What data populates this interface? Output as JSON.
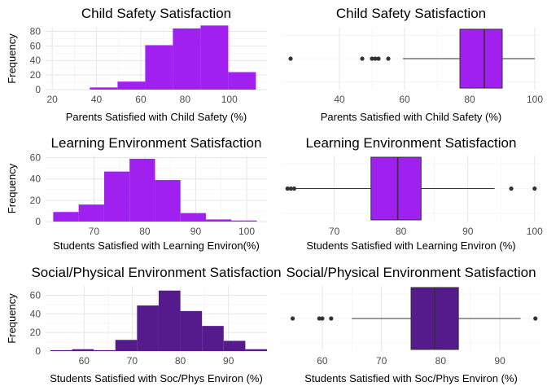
{
  "colors": {
    "purple_light": "#a020f0",
    "purple_dark": "#551a8b",
    "box_line": "#333333",
    "point": "#333333"
  },
  "chart_data": [
    {
      "id": "hist-child",
      "type": "bar",
      "title": "Child Safety Satisfaction",
      "xlabel": "Parents Satisfied with Child Safety (%)",
      "ylabel": "Frequency",
      "color": "#a020f0",
      "xlim": [
        17,
        117
      ],
      "ylim": [
        0,
        85
      ],
      "xticks": [
        20,
        40,
        60,
        80,
        100
      ],
      "yticks": [
        0,
        20,
        40,
        60,
        80
      ],
      "bins": [
        {
          "x0": 37,
          "x1": 49.5,
          "value": 3
        },
        {
          "x0": 49.5,
          "x1": 62,
          "value": 11
        },
        {
          "x0": 62,
          "x1": 74.5,
          "value": 61
        },
        {
          "x0": 74.5,
          "x1": 87,
          "value": 84
        },
        {
          "x0": 87,
          "x1": 99.5,
          "value": 88
        },
        {
          "x0": 99.5,
          "x1": 112,
          "value": 24
        }
      ]
    },
    {
      "id": "box-child",
      "type": "box",
      "title": "Child Safety Satisfaction",
      "xlabel": "Parents Satisfied with Child Safety (%)",
      "color": "#a020f0",
      "xlim": [
        22,
        102
      ],
      "xticks": [
        40,
        60,
        80,
        100
      ],
      "q1": 77,
      "median": 84.5,
      "q3": 90,
      "whisker_low": 59.5,
      "whisker_high": 100,
      "outliers": [
        25,
        47,
        50,
        51,
        52,
        55
      ]
    },
    {
      "id": "hist-learn",
      "type": "bar",
      "title": "Learning Environment Satisfaction",
      "xlabel": "Students Satisfied with Learning Environ(%)",
      "ylabel": "Frequency",
      "color": "#a020f0",
      "xlim": [
        60.5,
        104
      ],
      "ylim": [
        0,
        62
      ],
      "xticks": [
        70,
        80,
        90,
        100
      ],
      "yticks": [
        0,
        20,
        40,
        60
      ],
      "bins": [
        {
          "x0": 62,
          "x1": 67,
          "value": 9
        },
        {
          "x0": 67,
          "x1": 72,
          "value": 16
        },
        {
          "x0": 72,
          "x1": 77,
          "value": 47
        },
        {
          "x0": 77,
          "x1": 82,
          "value": 59
        },
        {
          "x0": 82,
          "x1": 87,
          "value": 39
        },
        {
          "x0": 87,
          "x1": 92,
          "value": 8
        },
        {
          "x0": 92,
          "x1": 97,
          "value": 2
        },
        {
          "x0": 97,
          "x1": 102,
          "value": 1
        }
      ]
    },
    {
      "id": "box-learn",
      "type": "box",
      "title": "Learning Environment Satisfaction",
      "xlabel": "Students Satisfied with Learning Environ (%)",
      "color": "#a020f0",
      "xlim": [
        62,
        101
      ],
      "xticks": [
        70,
        80,
        90,
        100
      ],
      "q1": 75.5,
      "median": 79.5,
      "q3": 83,
      "whisker_low": 63.5,
      "whisker_high": 94,
      "outliers": [
        63,
        63.5,
        64,
        96.5,
        100
      ]
    },
    {
      "id": "hist-soc",
      "type": "bar",
      "title": "Social/Physical Environment Satisfaction",
      "xlabel": "Students Satisfied with Soc/Phys Environ (%)",
      "ylabel": "Frequency",
      "color": "#551a8b",
      "xlim": [
        52,
        98
      ],
      "ylim": [
        0,
        70
      ],
      "xticks": [
        60,
        70,
        80,
        90
      ],
      "yticks": [
        0,
        20,
        40,
        60
      ],
      "bins": [
        {
          "x0": 53,
          "x1": 57.5,
          "value": 1
        },
        {
          "x0": 57.5,
          "x1": 62,
          "value": 2
        },
        {
          "x0": 62,
          "x1": 66.5,
          "value": 1
        },
        {
          "x0": 66.5,
          "x1": 71,
          "value": 12
        },
        {
          "x0": 71,
          "x1": 75.5,
          "value": 49
        },
        {
          "x0": 75.5,
          "x1": 80,
          "value": 65
        },
        {
          "x0": 80,
          "x1": 84.5,
          "value": 43
        },
        {
          "x0": 84.5,
          "x1": 89,
          "value": 27
        },
        {
          "x0": 89,
          "x1": 93.5,
          "value": 11
        },
        {
          "x0": 93.5,
          "x1": 98,
          "value": 2
        }
      ]
    },
    {
      "id": "box-soc",
      "type": "box",
      "title": "Social/Physical Environment Satisfaction",
      "xlabel": "Students Satisfied with Soc/Phys Environ (%)",
      "color": "#551a8b",
      "xlim": [
        53,
        97
      ],
      "xticks": [
        60,
        70,
        80,
        90
      ],
      "q1": 75,
      "median": 79,
      "q3": 83,
      "whisker_low": 65,
      "whisker_high": 93.5,
      "outliers": [
        55,
        59.5,
        60,
        61.5,
        96
      ]
    }
  ]
}
